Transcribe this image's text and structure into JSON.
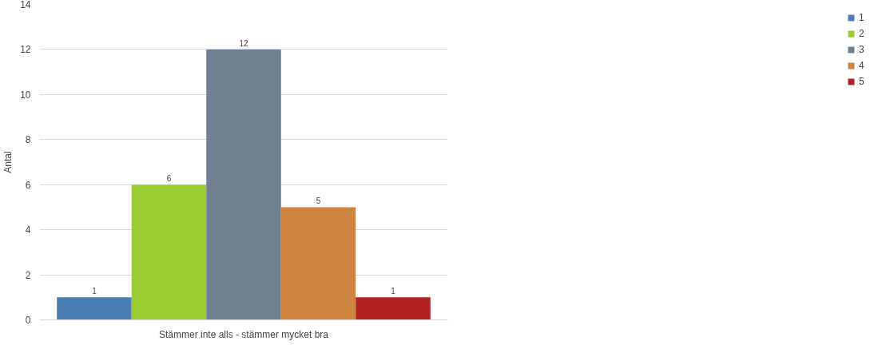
{
  "chart_data": {
    "type": "bar",
    "ylabel": "Antal",
    "categories": [
      "Stämmer inte alls - stämmer mycket bra"
    ],
    "series": [
      {
        "name": "1",
        "color": "#4a7fb5",
        "values": [
          1
        ]
      },
      {
        "name": "2",
        "color": "#9acd32",
        "values": [
          6
        ]
      },
      {
        "name": "3",
        "color": "#708090",
        "values": [
          12
        ]
      },
      {
        "name": "4",
        "color": "#cd853f",
        "values": [
          5
        ]
      },
      {
        "name": "5",
        "color": "#b22222",
        "values": [
          1
        ]
      }
    ],
    "ylim": [
      0,
      14
    ],
    "yticks": [
      0,
      2,
      4,
      6,
      8,
      10,
      12,
      14
    ],
    "grid": "y",
    "legend": "right",
    "data_labels": true
  }
}
